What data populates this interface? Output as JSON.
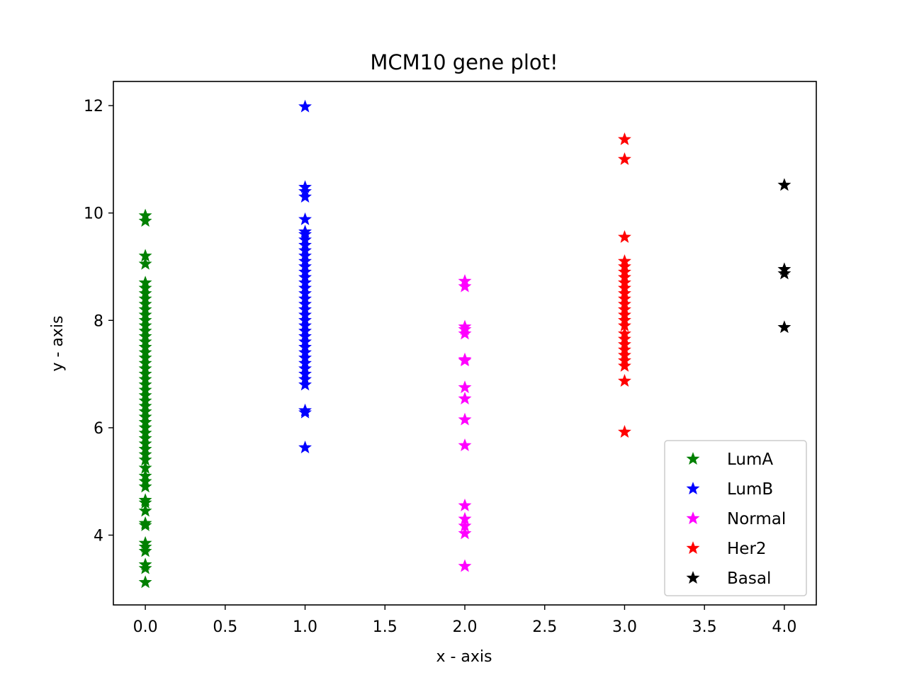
{
  "chart_data": {
    "type": "scatter",
    "title": "MCM10 gene plot!",
    "xlabel": "x - axis",
    "ylabel": "y - axis",
    "xlim": [
      -0.2,
      4.2
    ],
    "ylim": [
      2.7,
      12.45
    ],
    "xticks": [
      "0.0",
      "0.5",
      "1.0",
      "1.5",
      "2.0",
      "2.5",
      "3.0",
      "3.5",
      "4.0"
    ],
    "yticks": [
      "4",
      "6",
      "8",
      "10",
      "12"
    ],
    "grid": false,
    "legend_position": "bottom-right",
    "marker": "star",
    "series": [
      {
        "name": "LumA",
        "color": "#008000",
        "x": 0,
        "y": [
          3.12,
          3.38,
          3.45,
          3.7,
          3.78,
          3.85,
          4.18,
          4.22,
          4.45,
          4.6,
          4.65,
          4.9,
          5.0,
          5.1,
          5.25,
          5.4,
          5.5,
          5.6,
          5.7,
          5.8,
          5.9,
          6.0,
          6.1,
          6.2,
          6.3,
          6.4,
          6.5,
          6.6,
          6.7,
          6.8,
          6.9,
          7.0,
          7.1,
          7.2,
          7.3,
          7.4,
          7.5,
          7.6,
          7.7,
          7.8,
          7.9,
          8.0,
          8.1,
          8.2,
          8.3,
          8.4,
          8.5,
          8.6,
          8.7,
          9.05,
          9.2,
          9.85,
          9.95
        ]
      },
      {
        "name": "LumB",
        "color": "#0000ff",
        "x": 1,
        "y": [
          5.63,
          6.28,
          6.32,
          6.8,
          6.9,
          7.0,
          7.1,
          7.2,
          7.3,
          7.4,
          7.5,
          7.6,
          7.7,
          7.8,
          7.9,
          8.0,
          8.1,
          8.2,
          8.3,
          8.4,
          8.5,
          8.6,
          8.7,
          8.8,
          8.9,
          9.0,
          9.1,
          9.2,
          9.3,
          9.4,
          9.5,
          9.6,
          9.65,
          9.88,
          10.3,
          10.4,
          10.48,
          11.98
        ]
      },
      {
        "name": "Normal",
        "color": "#ff00ff",
        "x": 2,
        "y": [
          3.42,
          4.03,
          4.17,
          4.3,
          4.55,
          5.67,
          6.15,
          6.54,
          6.75,
          7.25,
          7.27,
          7.75,
          7.83,
          7.88,
          8.63,
          8.73
        ]
      },
      {
        "name": "Her2",
        "color": "#ff0000",
        "x": 3,
        "y": [
          5.92,
          6.87,
          7.15,
          7.25,
          7.35,
          7.45,
          7.55,
          7.65,
          7.75,
          7.9,
          8.0,
          8.1,
          8.2,
          8.3,
          8.4,
          8.5,
          8.6,
          8.7,
          8.8,
          8.9,
          9.0,
          9.1,
          9.55,
          11.0,
          11.37
        ]
      },
      {
        "name": "Basal",
        "color": "#000000",
        "x": 4,
        "y": [
          7.87,
          8.87,
          8.95,
          10.52
        ]
      }
    ]
  }
}
